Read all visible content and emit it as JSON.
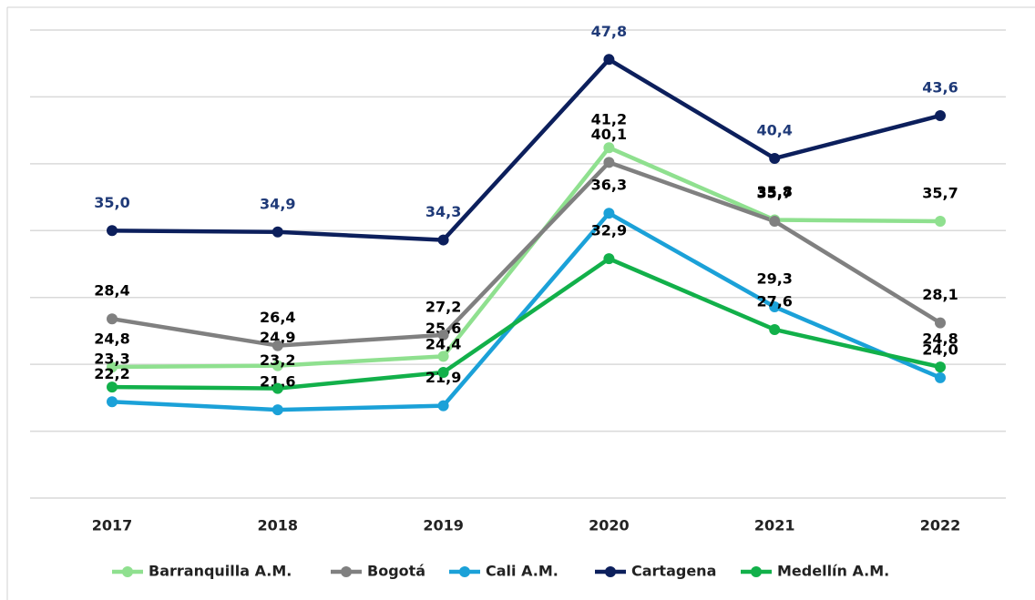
{
  "chart_data": {
    "type": "line",
    "categories": [
      "2017",
      "2018",
      "2019",
      "2020",
      "2021",
      "2022"
    ],
    "series": [
      {
        "name": "Barranquilla A.M.",
        "color": "#8fe08f",
        "label_color": "#000000",
        "values": [
          24.8,
          24.9,
          25.6,
          41.2,
          35.8,
          35.7
        ],
        "value_labels": [
          "24,8",
          "24,9",
          "25,6",
          "41,2",
          "35,8",
          "35,7"
        ]
      },
      {
        "name": "Bogotá",
        "color": "#808080",
        "label_color": "#000000",
        "values": [
          28.4,
          26.4,
          27.2,
          40.1,
          35.7,
          28.1
        ],
        "value_labels": [
          "28,4",
          "26,4",
          "27,2",
          "40,1",
          "35,7",
          "28,1"
        ]
      },
      {
        "name": "Cali A.M.",
        "color": "#1ba1d8",
        "label_color": "#000000",
        "values": [
          22.2,
          21.6,
          21.9,
          36.3,
          29.3,
          24.0
        ],
        "value_labels": [
          "22,2",
          "21,6",
          "21,9",
          "36,3",
          "29,3",
          "24,0"
        ]
      },
      {
        "name": "Cartagena",
        "color": "#0c1f5c",
        "label_color": "#1f3a78",
        "values": [
          35.0,
          34.9,
          34.3,
          47.8,
          40.4,
          43.6
        ],
        "value_labels": [
          "35,0",
          "34,9",
          "34,3",
          "47,8",
          "40,4",
          "43,6"
        ]
      },
      {
        "name": "Medellín A.M.",
        "color": "#12b04a",
        "label_color": "#000000",
        "values": [
          23.3,
          23.2,
          24.4,
          32.9,
          27.6,
          24.8
        ],
        "value_labels": [
          "23,3",
          "23,2",
          "24,4",
          "32,9",
          "27,6",
          "24,8"
        ]
      }
    ],
    "ylim": [
      15,
      50
    ],
    "yticks": [
      15,
      20,
      25,
      30,
      35,
      40,
      45,
      50
    ],
    "grid": true,
    "legend": "bottom"
  }
}
